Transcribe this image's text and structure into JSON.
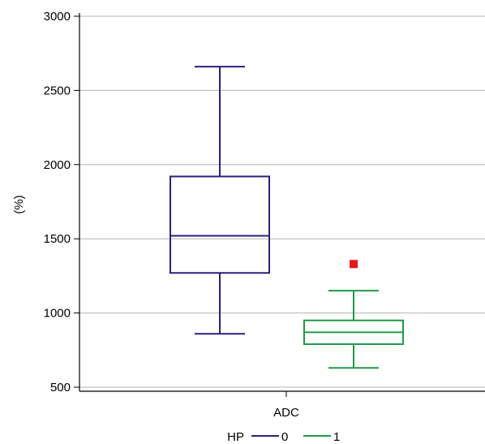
{
  "chart_data": {
    "type": "box",
    "title": "",
    "xlabel": "",
    "ylabel": "(%)",
    "ylim": [
      470,
      3030
    ],
    "yticks": [
      500,
      1000,
      1500,
      2000,
      2500,
      3000
    ],
    "grid": true,
    "categories": [
      "ADC"
    ],
    "legend": {
      "title": "HP",
      "placement": "bottom",
      "entries": [
        "0",
        "1"
      ]
    },
    "series": [
      {
        "name": "0",
        "color": "#2e1f7d",
        "whisker_low": 860,
        "q1": 1270,
        "median": 1520,
        "q3": 1920,
        "whisker_high": 2660,
        "outliers": []
      },
      {
        "name": "1",
        "color": "#1f9a48",
        "whisker_low": 630,
        "q1": 790,
        "median": 870,
        "q3": 950,
        "whisker_high": 1150,
        "outliers": [
          1330
        ]
      }
    ],
    "outlier_color": "#e8161b"
  }
}
